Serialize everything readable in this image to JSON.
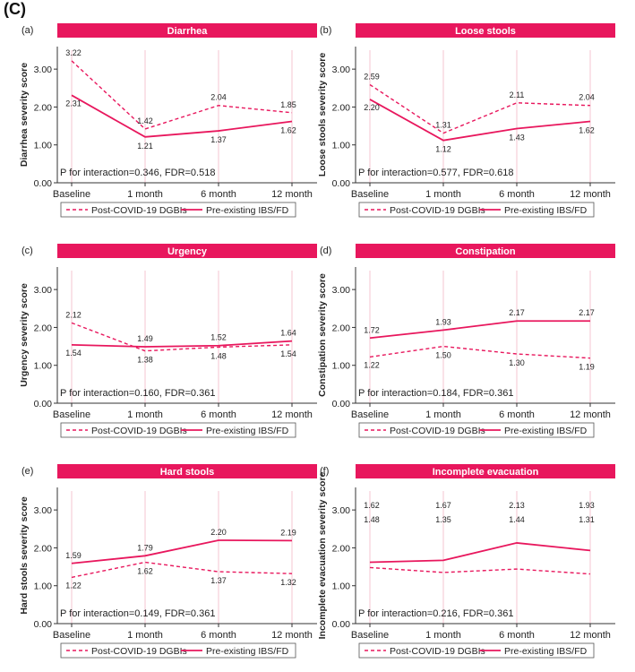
{
  "figure_label": "(C)",
  "colors": {
    "line": "#E8175D",
    "banner": "#E8175D",
    "banner_text": "#ffffff",
    "axis": "#333333",
    "grid": "#f4c6d2"
  },
  "legend_labels": {
    "post": "Post-COVID-19 DGBIs",
    "pre": "Pre-existing IBS/FD"
  },
  "chart_data": [
    {
      "panel": "(a)",
      "type": "line",
      "title": "Diarrhea",
      "ylabel": "Diarrhea severity score",
      "categories": [
        "Baseline",
        "1 month",
        "6 month",
        "12 month"
      ],
      "ylim": [
        0,
        3.5
      ],
      "yticks": [
        "0.00",
        "1.00",
        "2.00",
        "3.00"
      ],
      "series": [
        {
          "name": "Post-COVID-19 DGBIs",
          "style": "dashed",
          "values": [
            3.22,
            1.42,
            2.04,
            1.85
          ],
          "labels": [
            "3.22",
            "1.42",
            "2.04",
            "1.85"
          ]
        },
        {
          "name": "Pre-existing IBS/FD",
          "style": "solid",
          "values": [
            2.31,
            1.21,
            1.37,
            1.62
          ],
          "labels": [
            "2.31",
            "1.21",
            "1.37",
            "1.62"
          ]
        }
      ],
      "annotation": "P for interaction=0.346, FDR=0.518"
    },
    {
      "panel": "(b)",
      "type": "line",
      "title": "Loose stools",
      "ylabel": "Loose stools severity score",
      "categories": [
        "Baseline",
        "1 month",
        "6 month",
        "12 month"
      ],
      "ylim": [
        0,
        3.5
      ],
      "yticks": [
        "0.00",
        "1.00",
        "2.00",
        "3.00"
      ],
      "series": [
        {
          "name": "Post-COVID-19 DGBIs",
          "style": "dashed",
          "values": [
            2.59,
            1.31,
            2.11,
            2.04
          ],
          "labels": [
            "2.59",
            "1.31",
            "2.11",
            "2.04"
          ]
        },
        {
          "name": "Pre-existing IBS/FD",
          "style": "solid",
          "values": [
            2.2,
            1.12,
            1.43,
            1.62
          ],
          "labels": [
            "2.20",
            "1.12",
            "1.43",
            "1.62"
          ]
        }
      ],
      "annotation": "P for interaction=0.577, FDR=0.618"
    },
    {
      "panel": "(c)",
      "type": "line",
      "title": "Urgency",
      "ylabel": "Urgency severity score",
      "categories": [
        "Baseline",
        "1 month",
        "6 month",
        "12 month"
      ],
      "ylim": [
        0,
        3.5
      ],
      "yticks": [
        "0.00",
        "1.00",
        "2.00",
        "3.00"
      ],
      "series": [
        {
          "name": "Post-COVID-19 DGBIs",
          "style": "dashed",
          "values": [
            2.12,
            1.38,
            1.48,
            1.54
          ],
          "labels": [
            "2.12",
            "1.38",
            "1.48",
            "1.54"
          ]
        },
        {
          "name": "Pre-existing IBS/FD",
          "style": "solid",
          "values": [
            1.54,
            1.49,
            1.52,
            1.64
          ],
          "labels": [
            "1.54",
            "1.49",
            "1.52",
            "1.64"
          ]
        }
      ],
      "annotation": "P for interaction=0.160, FDR=0.361"
    },
    {
      "panel": "(d)",
      "type": "line",
      "title": "Constipation",
      "ylabel": "Constipation severity score",
      "categories": [
        "Baseline",
        "1 month",
        "6 month",
        "12 month"
      ],
      "ylim": [
        0,
        3.5
      ],
      "yticks": [
        "0.00",
        "1.00",
        "2.00",
        "3.00"
      ],
      "series": [
        {
          "name": "Post-COVID-19 DGBIs",
          "style": "dashed",
          "values": [
            1.22,
            1.5,
            1.3,
            1.19
          ],
          "labels": [
            "1.22",
            "1.50",
            "1.30",
            "1.19"
          ]
        },
        {
          "name": "Pre-existing IBS/FD",
          "style": "solid",
          "values": [
            1.72,
            1.93,
            2.17,
            2.17
          ],
          "labels": [
            "1.72",
            "1.93",
            "2.17",
            "2.17"
          ]
        }
      ],
      "annotation": "P for interaction=0.184, FDR=0.361"
    },
    {
      "panel": "(e)",
      "type": "line",
      "title": "Hard stools",
      "ylabel": "Hard stools severity score",
      "categories": [
        "Baseline",
        "1 month",
        "6 month",
        "12 month"
      ],
      "ylim": [
        0,
        3.5
      ],
      "yticks": [
        "0.00",
        "1.00",
        "2.00",
        "3.00"
      ],
      "series": [
        {
          "name": "Post-COVID-19 DGBIs",
          "style": "dashed",
          "values": [
            1.22,
            1.62,
            1.37,
            1.32
          ],
          "labels": [
            "1.22",
            "1.62",
            "1.37",
            "1.32"
          ]
        },
        {
          "name": "Pre-existing IBS/FD",
          "style": "solid",
          "values": [
            1.59,
            1.79,
            2.2,
            2.19
          ],
          "labels": [
            "1.59",
            "1.79",
            "2.20",
            "2.19"
          ]
        }
      ],
      "annotation": "P for interaction=0.149, FDR=0.361"
    },
    {
      "panel": "(f)",
      "type": "line",
      "title": "Incomplete evacuation",
      "ylabel": "Incomplete evacuation severity score",
      "categories": [
        "Baseline",
        "1 month",
        "6 month",
        "12 month"
      ],
      "ylim": [
        0,
        3.5
      ],
      "yticks": [
        "0.00",
        "1.00",
        "2.00",
        "3.00"
      ],
      "series": [
        {
          "name": "Post-COVID-19 DGBIs",
          "style": "dashed",
          "values": [
            1.48,
            1.35,
            1.44,
            1.31
          ],
          "labels": [
            "1.48",
            "1.35",
            "1.44",
            "1.31"
          ],
          "label_row": "lower"
        },
        {
          "name": "Pre-existing IBS/FD",
          "style": "solid",
          "values": [
            1.62,
            1.67,
            2.13,
            1.93
          ],
          "labels": [
            "1.62",
            "1.67",
            "2.13",
            "1.93"
          ],
          "label_row": "upper"
        }
      ],
      "annotation": "P for interaction=0.216, FDR=0.361"
    }
  ]
}
